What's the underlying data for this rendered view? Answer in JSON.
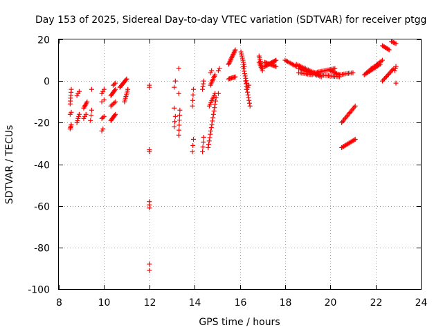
{
  "chart_data": {
    "type": "scatter",
    "title": "Day 153 of 2025, Sidereal Day-to-day VTEC variation (SDTVAR) for receiver ptgg",
    "xlabel": "GPS time / hours",
    "ylabel": "SDTVAR / TECUs",
    "xlim": [
      8,
      24
    ],
    "ylim": [
      -100,
      20
    ],
    "xticks": [
      8,
      10,
      12,
      14,
      16,
      18,
      20,
      22,
      24
    ],
    "yticks": [
      -100,
      -80,
      -60,
      -40,
      -20,
      0,
      20
    ],
    "grid": true,
    "marker": "plus",
    "color": "#ff0000",
    "segments": [
      {
        "x0": 8.5,
        "y0": -23,
        "x1": 8.55,
        "y1": -21,
        "n": 4
      },
      {
        "x0": 8.5,
        "y0": -16,
        "x1": 8.55,
        "y1": -15,
        "n": 2
      },
      {
        "x0": 8.5,
        "y0": -11,
        "x1": 8.55,
        "y1": -4,
        "n": 6
      },
      {
        "x0": 8.8,
        "y0": -20,
        "x1": 8.9,
        "y1": -16,
        "n": 5
      },
      {
        "x0": 8.8,
        "y0": -7,
        "x1": 8.9,
        "y1": -5,
        "n": 3
      },
      {
        "x0": 9.1,
        "y0": -18,
        "x1": 9.2,
        "y1": -16,
        "n": 3
      },
      {
        "x0": 9.1,
        "y0": -13,
        "x1": 9.25,
        "y1": -10,
        "n": 6
      },
      {
        "x0": 9.4,
        "y0": -19,
        "x1": 9.45,
        "y1": -14,
        "n": 3
      },
      {
        "x0": 9.45,
        "y0": -4,
        "x1": 9.45,
        "y1": -4,
        "n": 1
      },
      {
        "x0": 9.9,
        "y0": -24,
        "x1": 9.95,
        "y1": -23,
        "n": 2
      },
      {
        "x0": 9.9,
        "y0": -18,
        "x1": 10.0,
        "y1": -17,
        "n": 3
      },
      {
        "x0": 9.9,
        "y0": -10,
        "x1": 10.0,
        "y1": -9,
        "n": 2
      },
      {
        "x0": 9.9,
        "y0": -6,
        "x1": 10.0,
        "y1": -4,
        "n": 3
      },
      {
        "x0": 10.3,
        "y0": -19,
        "x1": 10.5,
        "y1": -16,
        "n": 8
      },
      {
        "x0": 10.3,
        "y0": -12,
        "x1": 10.5,
        "y1": -10,
        "n": 5
      },
      {
        "x0": 10.3,
        "y0": -7,
        "x1": 10.5,
        "y1": -4,
        "n": 7
      },
      {
        "x0": 10.4,
        "y0": -2,
        "x1": 10.5,
        "y1": -1,
        "n": 3
      },
      {
        "x0": 10.7,
        "y0": -3,
        "x1": 11.0,
        "y1": 1,
        "n": 10
      },
      {
        "x0": 10.9,
        "y0": -10,
        "x1": 11.05,
        "y1": -4,
        "n": 8
      },
      {
        "x0": 12.0,
        "y0": -3,
        "x1": 12.0,
        "y1": -2,
        "n": 2
      },
      {
        "x0": 12.0,
        "y0": -34,
        "x1": 12.0,
        "y1": -33,
        "n": 2
      },
      {
        "x0": 12.0,
        "y0": -61,
        "x1": 12.0,
        "y1": -58,
        "n": 3
      },
      {
        "x0": 12.0,
        "y0": -91,
        "x1": 12.0,
        "y1": -88,
        "n": 2
      },
      {
        "x0": 13.1,
        "y0": -3,
        "x1": 13.15,
        "y1": 0,
        "n": 2
      },
      {
        "x0": 13.1,
        "y0": -22,
        "x1": 13.15,
        "y1": -17,
        "n": 3
      },
      {
        "x0": 13.1,
        "y0": -13,
        "x1": 13.1,
        "y1": -12,
        "n": 1
      },
      {
        "x0": 13.3,
        "y0": 6,
        "x1": 13.3,
        "y1": 6,
        "n": 1
      },
      {
        "x0": 13.3,
        "y0": -6,
        "x1": 13.3,
        "y1": -6,
        "n": 1
      },
      {
        "x0": 13.3,
        "y0": -26,
        "x1": 13.35,
        "y1": -14,
        "n": 6
      },
      {
        "x0": 13.9,
        "y0": -12,
        "x1": 13.95,
        "y1": -4,
        "n": 4
      },
      {
        "x0": 13.9,
        "y0": -34,
        "x1": 13.95,
        "y1": -28,
        "n": 3
      },
      {
        "x0": 14.35,
        "y0": -4,
        "x1": 14.4,
        "y1": 0,
        "n": 4
      },
      {
        "x0": 14.35,
        "y0": -34,
        "x1": 14.4,
        "y1": -27,
        "n": 4
      },
      {
        "x0": 14.6,
        "y0": -32,
        "x1": 14.95,
        "y1": -8,
        "n": 16
      },
      {
        "x0": 14.65,
        "y0": -12,
        "x1": 14.9,
        "y1": -6,
        "n": 8
      },
      {
        "x0": 14.7,
        "y0": -2,
        "x1": 14.9,
        "y1": 3,
        "n": 8
      },
      {
        "x0": 14.7,
        "y0": 4,
        "x1": 14.75,
        "y1": 5,
        "n": 2
      },
      {
        "x0": 15.05,
        "y0": -6,
        "x1": 15.05,
        "y1": -6,
        "n": 1
      },
      {
        "x0": 15.05,
        "y0": 5,
        "x1": 15.1,
        "y1": 6,
        "n": 2
      },
      {
        "x0": 15.5,
        "y0": 1,
        "x1": 15.8,
        "y1": 2,
        "n": 8
      },
      {
        "x0": 15.5,
        "y0": 8,
        "x1": 15.8,
        "y1": 15,
        "n": 14
      },
      {
        "x0": 16.05,
        "y0": 14,
        "x1": 16.2,
        "y1": 7,
        "n": 8
      },
      {
        "x0": 16.15,
        "y0": 7,
        "x1": 16.3,
        "y1": -1,
        "n": 8
      },
      {
        "x0": 16.25,
        "y0": 0,
        "x1": 16.45,
        "y1": -12,
        "n": 10
      },
      {
        "x0": 16.3,
        "y0": -4,
        "x1": 16.4,
        "y1": -2,
        "n": 3
      },
      {
        "x0": 16.85,
        "y0": 12,
        "x1": 17.0,
        "y1": 6,
        "n": 8
      },
      {
        "x0": 16.85,
        "y0": 9,
        "x1": 17.0,
        "y1": 5,
        "n": 6
      },
      {
        "x0": 17.1,
        "y0": 7,
        "x1": 17.6,
        "y1": 10,
        "n": 14
      },
      {
        "x0": 17.1,
        "y0": 9,
        "x1": 17.6,
        "y1": 7,
        "n": 12
      },
      {
        "x0": 18.0,
        "y0": 10,
        "x1": 18.5,
        "y1": 7,
        "n": 10
      },
      {
        "x0": 18.5,
        "y0": 8,
        "x1": 19.5,
        "y1": 3,
        "n": 16
      },
      {
        "x0": 18.6,
        "y0": 6,
        "x1": 19.6,
        "y1": 2,
        "n": 16
      },
      {
        "x0": 18.6,
        "y0": 4,
        "x1": 19.2,
        "y1": 3,
        "n": 10
      },
      {
        "x0": 19.3,
        "y0": 4,
        "x1": 20.2,
        "y1": 6,
        "n": 16
      },
      {
        "x0": 19.5,
        "y0": 3,
        "x1": 20.4,
        "y1": 2,
        "n": 14
      },
      {
        "x0": 20.0,
        "y0": 5,
        "x1": 20.4,
        "y1": 3,
        "n": 8
      },
      {
        "x0": 20.4,
        "y0": 3,
        "x1": 21.0,
        "y1": 4,
        "n": 10
      },
      {
        "x0": 20.5,
        "y0": -20,
        "x1": 21.1,
        "y1": -12,
        "n": 14
      },
      {
        "x0": 20.5,
        "y0": -32,
        "x1": 21.1,
        "y1": -28,
        "n": 14
      },
      {
        "x0": 21.5,
        "y0": 3,
        "x1": 22.2,
        "y1": 8,
        "n": 14
      },
      {
        "x0": 21.6,
        "y0": 4,
        "x1": 22.3,
        "y1": 10,
        "n": 14
      },
      {
        "x0": 21.8,
        "y0": 6,
        "x1": 22.0,
        "y1": 7,
        "n": 4
      },
      {
        "x0": 22.3,
        "y0": 17,
        "x1": 22.6,
        "y1": 15,
        "n": 8
      },
      {
        "x0": 22.3,
        "y0": 0,
        "x1": 22.8,
        "y1": 6,
        "n": 12
      },
      {
        "x0": 22.7,
        "y0": 19,
        "x1": 22.9,
        "y1": 18,
        "n": 5
      },
      {
        "x0": 22.85,
        "y0": 5,
        "x1": 22.9,
        "y1": 7,
        "n": 3
      },
      {
        "x0": 22.9,
        "y0": -1,
        "x1": 22.9,
        "y1": -1,
        "n": 1
      }
    ]
  }
}
